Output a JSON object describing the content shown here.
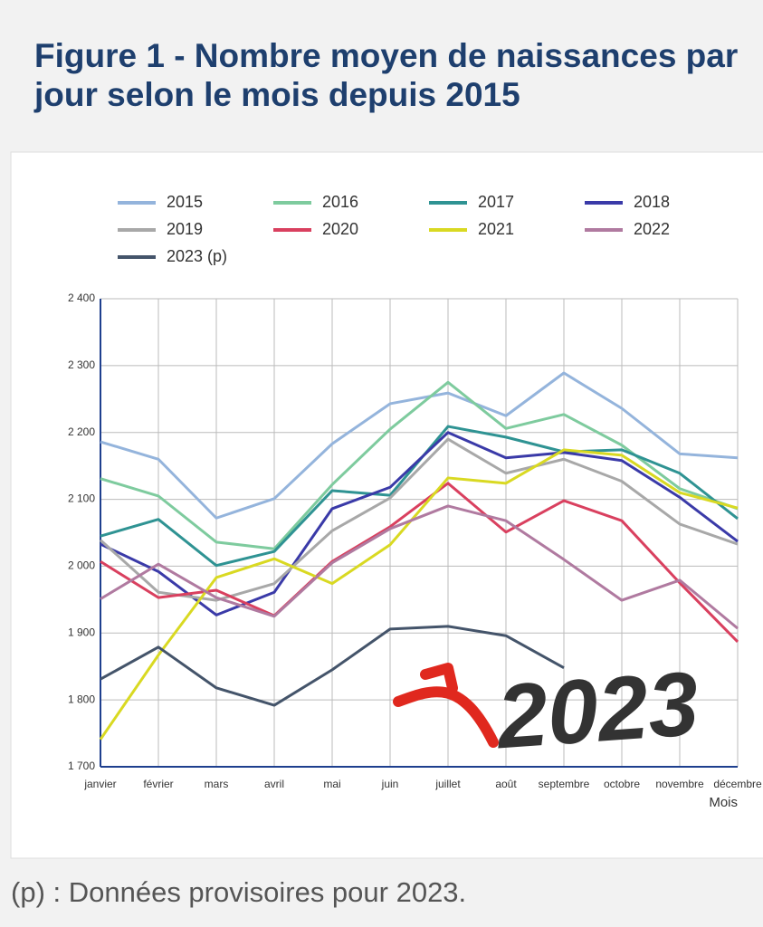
{
  "chart_data": {
    "type": "line",
    "title": "Figure 1 - Nombre moyen de naissances par jour selon le mois depuis 2015",
    "footnote": "(p) : Données provisoires pour 2023.",
    "xlabel": "Mois",
    "annotation": "2023",
    "categories": [
      "janvier",
      "février",
      "mars",
      "avril",
      "mai",
      "juin",
      "juillet",
      "août",
      "septembre",
      "octobre",
      "novembre",
      "décembre"
    ],
    "ylim": [
      1700,
      2400
    ],
    "yticks": [
      {
        "value": 1700,
        "label": "1 700"
      },
      {
        "value": 1800,
        "label": "1 800"
      },
      {
        "value": 1900,
        "label": "1 900"
      },
      {
        "value": 2000,
        "label": "2 000"
      },
      {
        "value": 2100,
        "label": "2 100"
      },
      {
        "value": 2200,
        "label": "2 200"
      },
      {
        "value": 2300,
        "label": "2 300"
      },
      {
        "value": 2400,
        "label": "2 400"
      }
    ],
    "grid": true,
    "series": [
      {
        "name": "2015",
        "color": "#94b4dc",
        "values": [
          2186,
          2160,
          2072,
          2101,
          2183,
          2243,
          2259,
          2225,
          2289,
          2236,
          2168,
          2162
        ]
      },
      {
        "name": "2016",
        "color": "#7ecb9e",
        "values": [
          2131,
          2105,
          2036,
          2026,
          2122,
          2205,
          2275,
          2206,
          2227,
          2181,
          2116,
          2086
        ]
      },
      {
        "name": "2017",
        "color": "#2f9393",
        "values": [
          2045,
          2070,
          2001,
          2022,
          2113,
          2106,
          2209,
          2193,
          2171,
          2174,
          2139,
          2071
        ]
      },
      {
        "name": "2018",
        "color": "#3a3aa8",
        "values": [
          2033,
          1992,
          1927,
          1961,
          2086,
          2118,
          2200,
          2162,
          2170,
          2158,
          2103,
          2037
        ]
      },
      {
        "name": "2019",
        "color": "#a8a8a8",
        "values": [
          2039,
          1961,
          1949,
          1974,
          2053,
          2102,
          2190,
          2139,
          2160,
          2127,
          2063,
          2033
        ]
      },
      {
        "name": "2020",
        "color": "#d9405f",
        "values": [
          2007,
          1953,
          1964,
          1926,
          2007,
          2059,
          2124,
          2051,
          2098,
          2068,
          1975,
          1887
        ]
      },
      {
        "name": "2021",
        "color": "#d9d922",
        "values": [
          1741,
          1867,
          1983,
          2011,
          1974,
          2032,
          2132,
          2124,
          2174,
          2166,
          2110,
          2087
        ]
      },
      {
        "name": "2022",
        "color": "#b07aa0",
        "values": [
          1951,
          2003,
          1953,
          1925,
          2005,
          2056,
          2090,
          2068,
          2010,
          1949,
          1979,
          1907
        ]
      },
      {
        "name": "2023 (p)",
        "color": "#44546a",
        "values": [
          1831,
          1879,
          1818,
          1792,
          1845,
          1906,
          1910,
          1896,
          1848,
          null,
          null,
          null
        ]
      }
    ]
  }
}
